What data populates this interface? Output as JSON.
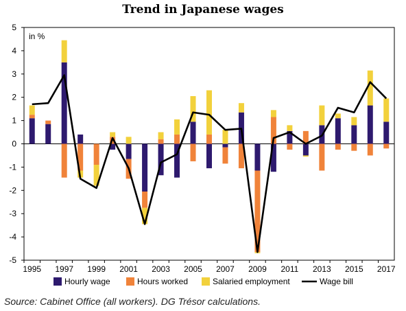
{
  "title": "Trend in Japanese wages",
  "source": "Source: Cabinet Office (all workers). DG Trésor calculations.",
  "chart_data": {
    "type": "bar",
    "stacked": true,
    "unit_label": "in %",
    "ylim": [
      -5,
      5
    ],
    "y_ticks": [
      "5",
      "4",
      "3",
      "2",
      "1",
      "0",
      "-1",
      "-2",
      "-3",
      "-4",
      "-5"
    ],
    "years": [
      1995,
      1996,
      1997,
      1998,
      1999,
      2000,
      2001,
      2002,
      2003,
      2004,
      2005,
      2006,
      2007,
      2008,
      2009,
      2010,
      2011,
      2012,
      2013,
      2014,
      2015,
      2016,
      2017
    ],
    "x_tick_labels": [
      "1995",
      "1997",
      "1999",
      "2001",
      "2003",
      "2005",
      "2007",
      "2009",
      "2011",
      "2013",
      "2015",
      "2017"
    ],
    "colors": {
      "hourly": "#2e1a6e",
      "hours": "#f0833a",
      "salaried": "#f2d13c",
      "line": "#000000"
    },
    "series": [
      {
        "name": "Hourly wage",
        "key": "hourly",
        "values": [
          1.1,
          0.85,
          3.5,
          0.4,
          0.0,
          -0.25,
          -0.65,
          -2.05,
          -1.35,
          -1.45,
          0.95,
          -1.05,
          -0.15,
          1.35,
          -1.15,
          -1.2,
          0.55,
          -0.5,
          0.8,
          1.1,
          0.8,
          1.65,
          0.95
        ]
      },
      {
        "name": "Hours worked",
        "key": "hours",
        "values": [
          0.15,
          0.15,
          -1.45,
          -1.15,
          -0.9,
          0.3,
          -0.85,
          -0.7,
          0.2,
          0.4,
          -0.75,
          0.4,
          -0.7,
          -1.05,
          -3.5,
          1.15,
          -0.25,
          0.55,
          -1.15,
          -0.25,
          -0.3,
          -0.5,
          -0.2
        ]
      },
      {
        "name": "Salaried employment",
        "key": "salaried",
        "values": [
          0.4,
          0.0,
          0.95,
          -0.3,
          -0.9,
          0.2,
          0.3,
          -0.7,
          0.3,
          0.65,
          1.1,
          1.9,
          0.6,
          0.4,
          -0.05,
          0.3,
          0.25,
          -0.05,
          0.85,
          0.2,
          0.35,
          1.5,
          1.0
        ]
      }
    ],
    "line": {
      "name": "Wage bill",
      "values": [
        1.7,
        1.75,
        2.95,
        -1.5,
        -1.9,
        0.25,
        -1.05,
        -3.45,
        -0.8,
        -0.45,
        1.35,
        1.25,
        0.6,
        0.65,
        -4.65,
        0.25,
        0.5,
        0.0,
        0.35,
        1.55,
        1.35,
        2.65,
        1.95
      ]
    },
    "legend": [
      "Hourly wage",
      "Hours worked",
      "Salaried employment",
      "Wage bill"
    ],
    "legend_position": "bottom",
    "grid": false
  }
}
